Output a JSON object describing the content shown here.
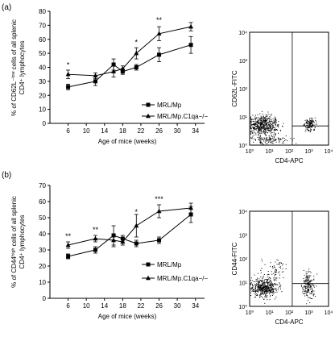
{
  "panels": {
    "a": {
      "label": "(a)",
      "ylabel_lines": [
        "% of CD62L⁻ˡᵒʷ cells of all splenic",
        "CD4⁺ lymphocytes"
      ],
      "xlabel": "Age of mice (weeks)"
    },
    "b": {
      "label": "(b)",
      "ylabel_lines": [
        "% of CD44ʰⁱᵍʰ cells of all splenic",
        "CD4⁺ lymphocytes"
      ],
      "xlabel": "Age of mice (weeks)"
    }
  },
  "flow_plots": [
    {
      "ylabel": "CD62L-FITC",
      "xlabel": "CD4-APC",
      "x_ticks": [
        "10⁰",
        "10¹",
        "10²",
        "10³",
        "10⁴"
      ],
      "y_ticks": [
        "10⁰",
        "10¹",
        "10²",
        "10³",
        "10⁴"
      ]
    },
    {
      "ylabel": "CD44-FITC",
      "xlabel": "CD4-APC",
      "x_ticks": [
        "10⁰",
        "10¹",
        "10²",
        "10³",
        "10⁴"
      ],
      "y_ticks": [
        "10⁰",
        "10¹",
        "10²",
        "10³",
        "10⁴"
      ]
    }
  ],
  "chart_data": [
    {
      "type": "line",
      "panel": "a",
      "title": "",
      "xlabel": "Age of mice (weeks)",
      "ylabel": "% of CD62L-low cells of all splenic CD4+ lymphocytes",
      "xlim": [
        2,
        36
      ],
      "ylim": [
        0,
        80
      ],
      "x_ticks": [
        6,
        10,
        14,
        18,
        22,
        26,
        30,
        34
      ],
      "y_ticks": [
        0,
        10,
        20,
        30,
        40,
        50,
        60,
        70,
        80
      ],
      "legend": "center-right",
      "series": [
        {
          "name": "MRL/Mp",
          "marker": "square",
          "x": [
            6,
            12,
            16,
            18,
            21,
            26,
            33
          ],
          "y": [
            26,
            30,
            42,
            37,
            40,
            49,
            56
          ],
          "err": [
            2,
            3,
            4,
            2,
            2,
            5,
            6
          ]
        },
        {
          "name": "MRL/Mp.C1qa−/−",
          "marker": "triangle",
          "x": [
            6,
            12,
            16,
            18,
            21,
            26,
            33
          ],
          "y": [
            35,
            34,
            37,
            39,
            50,
            64,
            69
          ],
          "err": [
            3,
            2,
            4,
            2,
            4,
            5,
            3
          ]
        }
      ],
      "annotations": [
        {
          "x": 6,
          "y": 40,
          "text": "*"
        },
        {
          "x": 21,
          "y": 56,
          "text": "*"
        },
        {
          "x": 26,
          "y": 72,
          "text": "**"
        }
      ]
    },
    {
      "type": "line",
      "panel": "b",
      "title": "",
      "xlabel": "Age of mice (weeks)",
      "ylabel": "% of CD44-high cells of all splenic CD4+ lymphocytes",
      "xlim": [
        2,
        36
      ],
      "ylim": [
        0,
        70
      ],
      "x_ticks": [
        6,
        10,
        14,
        18,
        22,
        26,
        30,
        34
      ],
      "y_ticks": [
        0,
        10,
        20,
        30,
        40,
        50,
        60,
        70
      ],
      "legend": "center-right",
      "series": [
        {
          "name": "MRL/Mp",
          "marker": "square",
          "x": [
            6,
            12,
            16,
            18,
            21,
            26,
            33
          ],
          "y": [
            26,
            30,
            39,
            37,
            34,
            36,
            52
          ],
          "err": [
            1.5,
            2,
            6,
            2,
            2,
            2,
            5
          ]
        },
        {
          "name": "MRL/Mp.C1qa−/−",
          "marker": "triangle",
          "x": [
            6,
            12,
            16,
            18,
            21,
            26,
            33
          ],
          "y": [
            33,
            37,
            36,
            35,
            45,
            54,
            56
          ],
          "err": [
            2,
            2,
            4,
            2,
            7,
            4,
            3
          ]
        }
      ],
      "annotations": [
        {
          "x": 6,
          "y": 37,
          "text": "**"
        },
        {
          "x": 12,
          "y": 41,
          "text": "**"
        },
        {
          "x": 21,
          "y": 52,
          "text": "*"
        },
        {
          "x": 26,
          "y": 60,
          "text": "***"
        }
      ]
    }
  ]
}
